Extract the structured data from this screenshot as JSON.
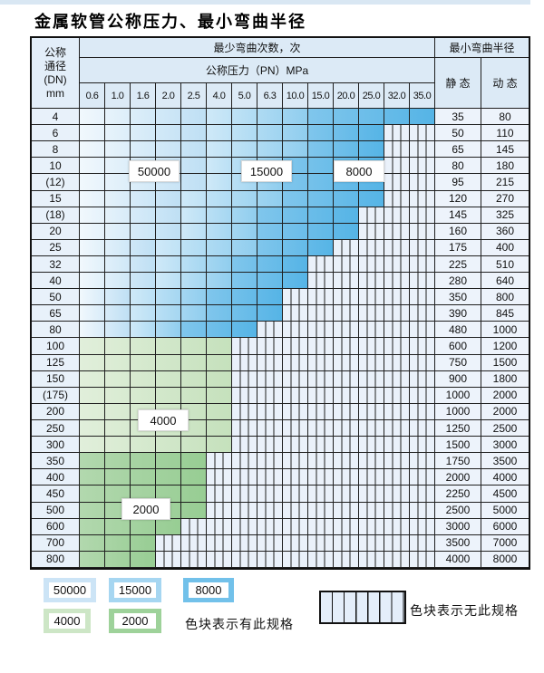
{
  "title": "金属软管公称压力、最小弯曲半径",
  "table": {
    "corner_lines": [
      "公称",
      "通径",
      "(DN)",
      "mm"
    ],
    "bend_cycles_header": "最少弯曲次数，次",
    "pressure_header": "公称压力（PN）MPa",
    "radius_header": "最小弯曲半径",
    "static_header": "静 态",
    "dynamic_header": "动 态"
  },
  "zone_labels": {
    "z50": "50000",
    "z15": "15000",
    "z8": "8000",
    "g4": "4000",
    "g2": "2000"
  },
  "legend": {
    "swatches": [
      {
        "zone": "z50",
        "label": "50000"
      },
      {
        "zone": "z15",
        "label": "15000"
      },
      {
        "zone": "z8",
        "label": "8000"
      },
      {
        "zone": "g4",
        "label": "4000"
      },
      {
        "zone": "g2",
        "label": "2000"
      }
    ],
    "has_spec_text": "色块表示有此规格",
    "no_spec_text": "色块表示无此规格"
  },
  "colors": {
    "grid": "#1f1f1f",
    "header_bg": "#dceaf6",
    "dn_bg": "#e8f1fa",
    "value_bg": "#edf3fb",
    "hatch_bg": "#eaf1fa",
    "top_strip": "#d9e7f3",
    "zones": {
      "z50": [
        "#f1f8fd",
        "#bedff4"
      ],
      "z15": [
        "#cfe9f8",
        "#8fcdee"
      ],
      "z8": [
        "#80c6ec",
        "#55b4e6"
      ],
      "g4": [
        "#e1efdb",
        "#c5e1bc"
      ],
      "g2": [
        "#b2d8ae",
        "#97cd93"
      ]
    },
    "swatch_solid": {
      "z50": "#cce4f6",
      "z15": "#a6d6f1",
      "z8": "#72c1ea",
      "g4": "#cde6c6",
      "g2": "#9ed29a"
    }
  },
  "chart_data": {
    "type": "table",
    "title": "金属软管公称压力、最小弯曲半径",
    "pressure_columns_pn_mpa": [
      "0.6",
      "1.0",
      "1.6",
      "2.0",
      "2.5",
      "4.0",
      "5.0",
      "6.3",
      "10.0",
      "15.0",
      "20.0",
      "25.0",
      "32.0",
      "35.0"
    ],
    "zone_cycles": {
      "z50": 50000,
      "z15": 15000,
      "z8": 8000,
      "g4": 4000,
      "g2": 2000
    },
    "notes": {
      "colored_cells": "色块表示有此规格",
      "hatched_cells": "色块表示无此规格"
    },
    "rows": [
      {
        "dn": "4",
        "static_radius": "35",
        "dynamic_radius": "80",
        "end": 13,
        "z15": 5,
        "z8": 9
      },
      {
        "dn": "6",
        "static_radius": "50",
        "dynamic_radius": "110",
        "end": 11,
        "z15": 5,
        "z8": 9
      },
      {
        "dn": "8",
        "static_radius": "65",
        "dynamic_radius": "145",
        "end": 11,
        "z15": 5,
        "z8": 9
      },
      {
        "dn": "10",
        "static_radius": "80",
        "dynamic_radius": "180",
        "end": 11,
        "z15": 5,
        "z8": 8
      },
      {
        "dn": "(12)",
        "static_radius": "95",
        "dynamic_radius": "215",
        "end": 11,
        "z15": 5,
        "z8": 8
      },
      {
        "dn": "15",
        "static_radius": "120",
        "dynamic_radius": "270",
        "end": 11,
        "z15": 4,
        "z8": 8
      },
      {
        "dn": "(18)",
        "static_radius": "145",
        "dynamic_radius": "325",
        "end": 10,
        "z15": 4,
        "z8": 7
      },
      {
        "dn": "20",
        "static_radius": "160",
        "dynamic_radius": "360",
        "end": 10,
        "z15": 4,
        "z8": 7
      },
      {
        "dn": "25",
        "static_radius": "175",
        "dynamic_radius": "400",
        "end": 9,
        "z15": 3,
        "z8": 7
      },
      {
        "dn": "32",
        "static_radius": "225",
        "dynamic_radius": "510",
        "end": 8,
        "z15": 3,
        "z8": 6
      },
      {
        "dn": "40",
        "static_radius": "280",
        "dynamic_radius": "640",
        "end": 8,
        "z15": 3,
        "z8": 6
      },
      {
        "dn": "50",
        "static_radius": "350",
        "dynamic_radius": "800",
        "end": 7,
        "z15": 2,
        "z8": 5
      },
      {
        "dn": "65",
        "static_radius": "390",
        "dynamic_radius": "845",
        "end": 7,
        "z15": 2,
        "z8": 5
      },
      {
        "dn": "80",
        "static_radius": "480",
        "dynamic_radius": "1000",
        "end": 6,
        "z15": 2,
        "z8": 4
      },
      {
        "dn": "100",
        "static_radius": "600",
        "dynamic_radius": "1200",
        "end": 5,
        "zone": "g4"
      },
      {
        "dn": "125",
        "static_radius": "750",
        "dynamic_radius": "1500",
        "end": 5,
        "zone": "g4"
      },
      {
        "dn": "150",
        "static_radius": "900",
        "dynamic_radius": "1800",
        "end": 5,
        "zone": "g4"
      },
      {
        "dn": "(175)",
        "static_radius": "1000",
        "dynamic_radius": "2000",
        "end": 5,
        "zone": "g4"
      },
      {
        "dn": "200",
        "static_radius": "1000",
        "dynamic_radius": "2000",
        "end": 5,
        "zone": "g4"
      },
      {
        "dn": "250",
        "static_radius": "1250",
        "dynamic_radius": "2500",
        "end": 5,
        "zone": "g4"
      },
      {
        "dn": "300",
        "static_radius": "1500",
        "dynamic_radius": "3000",
        "end": 5,
        "zone": "g4"
      },
      {
        "dn": "350",
        "static_radius": "1750",
        "dynamic_radius": "3500",
        "end": 4,
        "zone": "g2"
      },
      {
        "dn": "400",
        "static_radius": "2000",
        "dynamic_radius": "4000",
        "end": 4,
        "zone": "g2"
      },
      {
        "dn": "450",
        "static_radius": "2250",
        "dynamic_radius": "4500",
        "end": 4,
        "zone": "g2"
      },
      {
        "dn": "500",
        "static_radius": "2500",
        "dynamic_radius": "5000",
        "end": 4,
        "zone": "g2"
      },
      {
        "dn": "600",
        "static_radius": "3000",
        "dynamic_radius": "6000",
        "end": 3,
        "zone": "g2"
      },
      {
        "dn": "700",
        "static_radius": "3500",
        "dynamic_radius": "7000",
        "end": 2,
        "zone": "g2"
      },
      {
        "dn": "800",
        "static_radius": "4000",
        "dynamic_radius": "8000",
        "end": 2,
        "zone": "g2"
      }
    ]
  }
}
